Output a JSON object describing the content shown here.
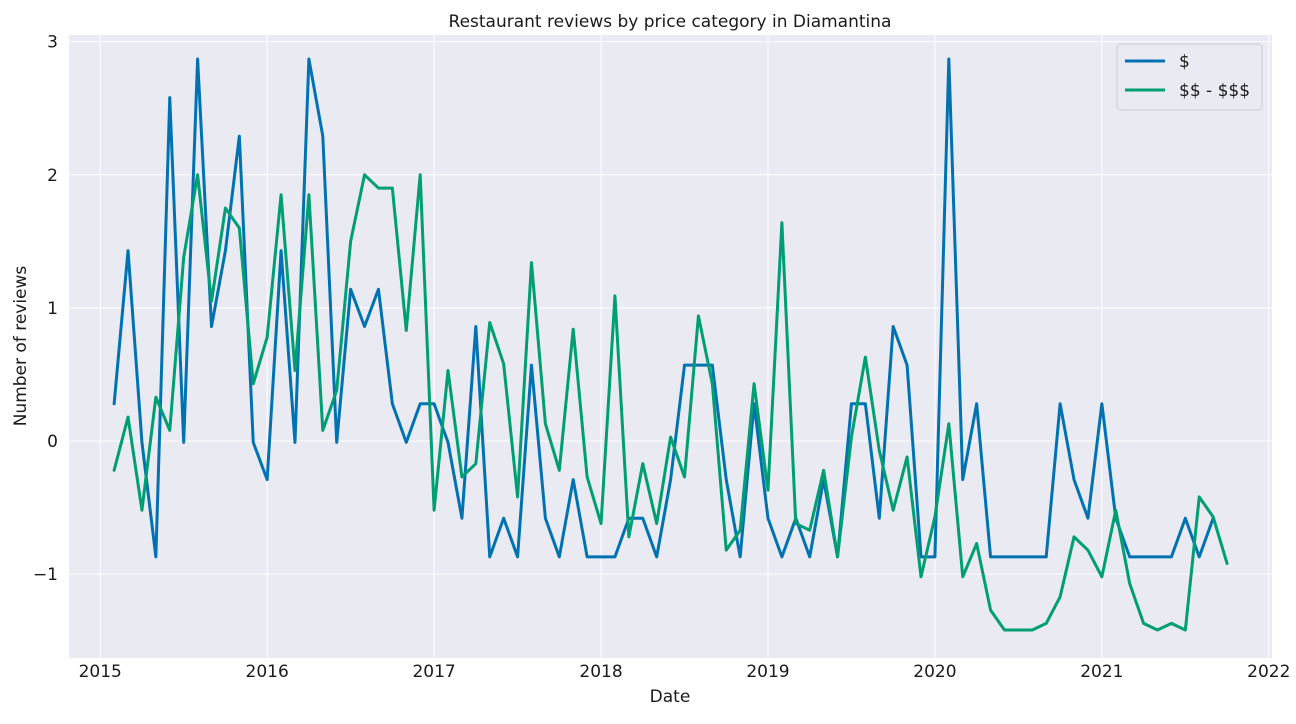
{
  "chart_data": {
    "type": "line",
    "title": "Restaurant reviews by price category in Diamantina",
    "xlabel": "Date",
    "ylabel": "Number of reviews",
    "x_ticks": [
      "2015",
      "2016",
      "2017",
      "2018",
      "2019",
      "2020",
      "2021",
      "2022"
    ],
    "y_ticks": [
      "−1",
      "0",
      "1",
      "2",
      "3"
    ],
    "xlim": [
      "2014-10-24",
      "2022-01-08"
    ],
    "ylim": [
      -1.63,
      3.05
    ],
    "grid": true,
    "legend_position": "top-right",
    "x_start": "2015-01",
    "x_step": "1 month",
    "series": [
      {
        "name": "$",
        "color": "#0072b2",
        "values": [
          0.28,
          1.43,
          -0.01,
          -0.87,
          2.58,
          -0.01,
          2.87,
          0.86,
          1.43,
          2.29,
          -0.01,
          -0.29,
          1.43,
          -0.01,
          2.87,
          2.29,
          -0.01,
          1.14,
          0.86,
          1.14,
          0.28,
          -0.01,
          0.28,
          0.28,
          -0.01,
          -0.58,
          0.86,
          -0.87,
          -0.58,
          -0.87,
          0.57,
          -0.58,
          -0.87,
          -0.29,
          -0.87,
          -0.87,
          -0.87,
          -0.58,
          -0.58,
          -0.87,
          -0.29,
          0.57,
          0.57,
          0.57,
          -0.29,
          -0.87,
          0.28,
          -0.58,
          -0.87,
          -0.58,
          -0.87,
          -0.29,
          -0.87,
          0.28,
          0.28,
          -0.58,
          0.86,
          0.57,
          -0.87,
          -0.87,
          2.87,
          -0.29,
          0.28,
          -0.87,
          -0.87,
          -0.87,
          -0.87,
          -0.87,
          0.28,
          -0.29,
          -0.58,
          0.28,
          -0.58,
          -0.87,
          -0.87,
          -0.87,
          -0.87,
          -0.58,
          -0.87,
          -0.58
        ]
      },
      {
        "name": "$$ - $$$",
        "color": "#009e73",
        "values": [
          -0.22,
          0.18,
          -0.52,
          0.33,
          0.08,
          1.38,
          2.0,
          1.05,
          1.75,
          1.6,
          0.43,
          0.78,
          1.85,
          0.53,
          1.85,
          0.08,
          0.38,
          1.5,
          2.0,
          1.9,
          1.9,
          0.83,
          2.0,
          -0.52,
          0.53,
          -0.27,
          -0.17,
          0.89,
          0.58,
          -0.42,
          1.34,
          0.13,
          -0.22,
          0.84,
          -0.27,
          -0.62,
          1.09,
          -0.72,
          -0.17,
          -0.62,
          0.03,
          -0.27,
          0.94,
          0.43,
          -0.82,
          -0.67,
          0.43,
          -0.37,
          1.64,
          -0.62,
          -0.67,
          -0.22,
          -0.87,
          0.03,
          0.63,
          -0.07,
          -0.52,
          -0.12,
          -1.02,
          -0.57,
          0.13,
          -1.02,
          -0.77,
          -1.27,
          -1.42,
          -1.42,
          -1.42,
          -1.37,
          -1.17,
          -0.72,
          -0.82,
          -1.02,
          -0.52,
          -1.07,
          -1.37,
          -1.42,
          -1.37,
          -1.42,
          -0.42,
          -0.57,
          -0.92
        ]
      }
    ]
  }
}
